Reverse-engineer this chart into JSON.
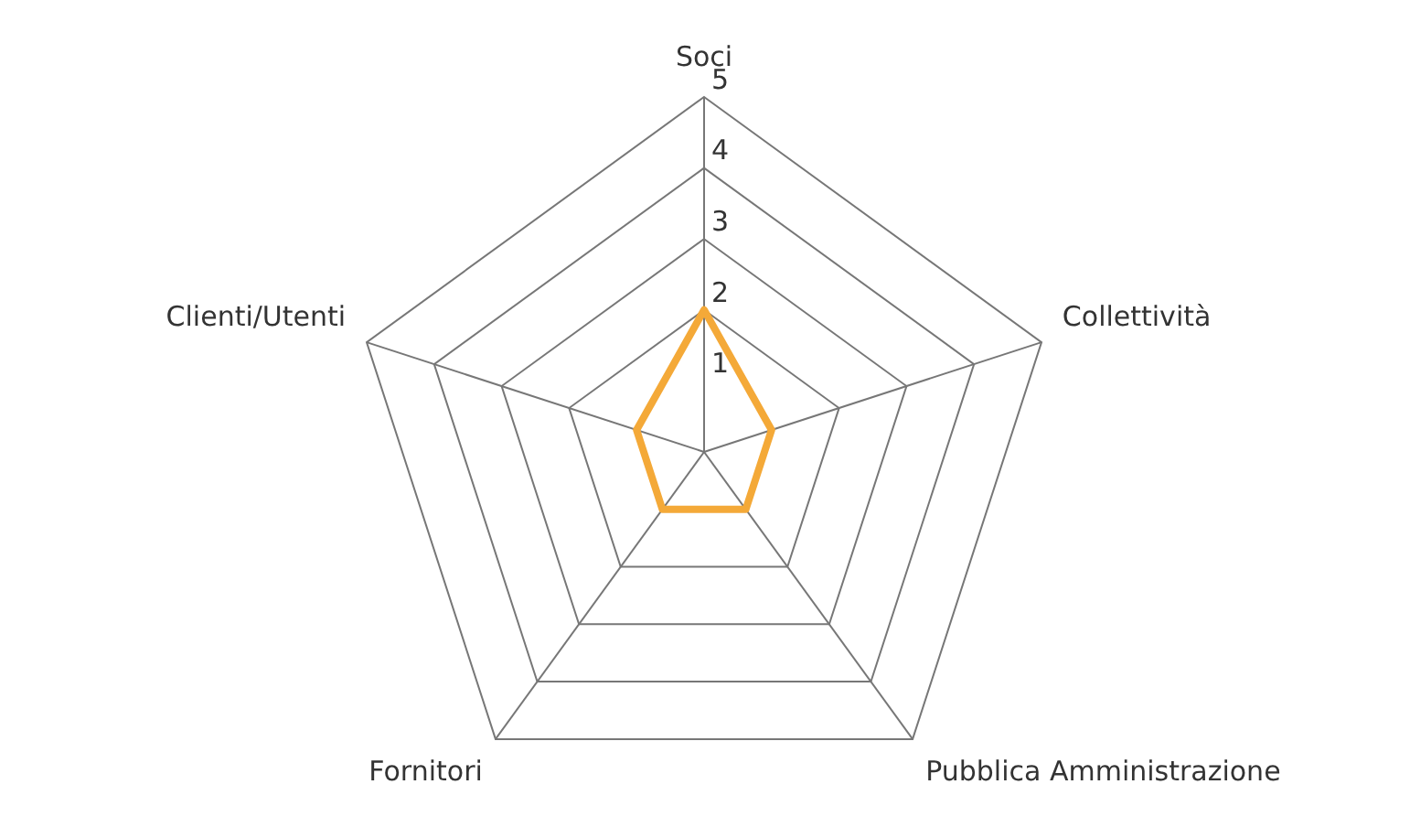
{
  "chart_data": {
    "type": "radar",
    "categories": [
      "Soci",
      "Collettività",
      "Pubblica Amministrazione",
      "Fornitori",
      "Clienti/Utenti"
    ],
    "series": [
      {
        "color": "#f4a938",
        "values": [
          2,
          1,
          1,
          1,
          1
        ]
      }
    ],
    "ylim": [
      0,
      5
    ],
    "yticks": [
      1,
      2,
      3,
      4,
      5
    ],
    "grid": true,
    "legend": false,
    "marker": "none",
    "line_style": "solid"
  }
}
